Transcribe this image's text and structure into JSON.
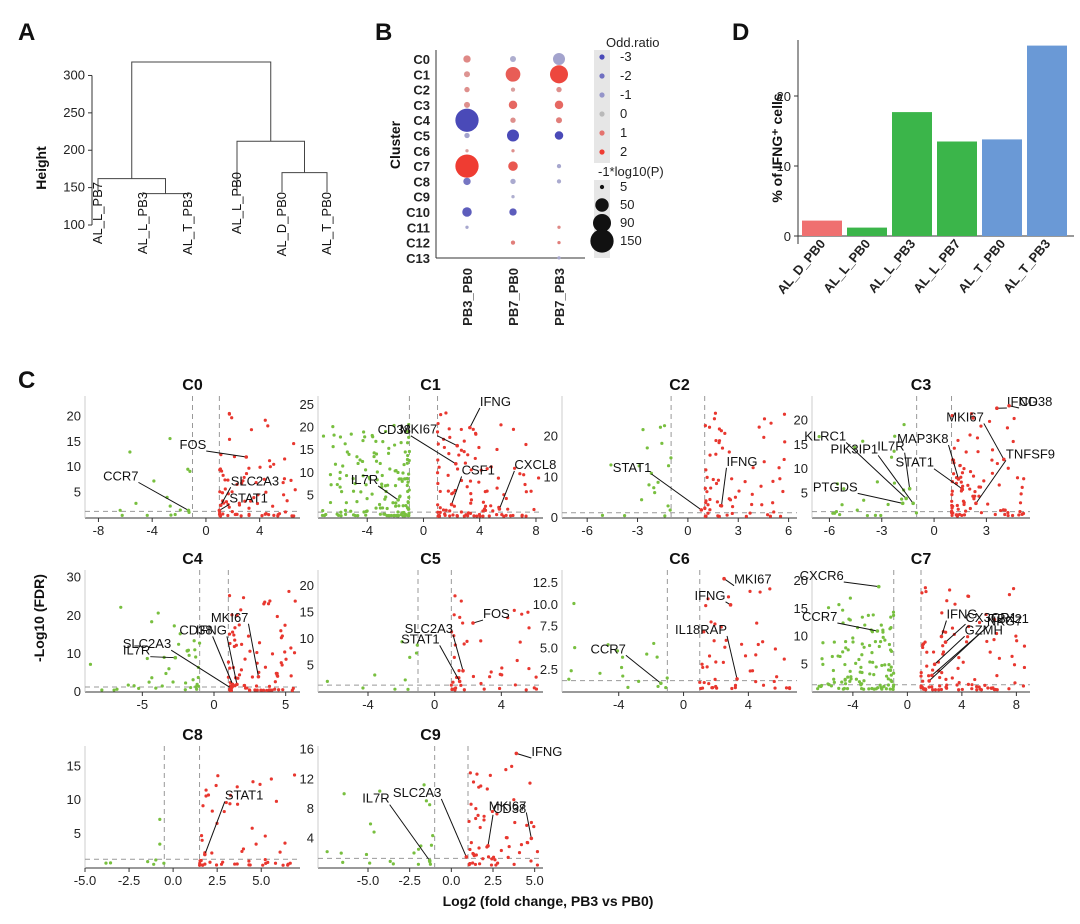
{
  "panel_labels": [
    "A",
    "B",
    "C",
    "D"
  ],
  "colors": {
    "up": "#e8372f",
    "down": "#78bf3f",
    "neg": "#4a4ab8",
    "pos": "#e46a5a",
    "grey": "#b9b9b9",
    "d_red": "#ef7070",
    "d_green": "#3bb54a",
    "d_blue": "#6a99d6"
  },
  "chart_data": [
    {
      "id": "A",
      "type": "dendrogram",
      "ylabel": "Height",
      "ylim": [
        100,
        310
      ],
      "yticks": [
        100,
        150,
        200,
        250,
        300
      ],
      "leaves": [
        "AL_L_PB7",
        "AL_L_PB3",
        "AL_T_PB3",
        "AL_L_PB0",
        "AL_D_PB0",
        "AL_T_PB0"
      ],
      "merges": [
        {
          "a": "AL_L_PB3",
          "b": "AL_T_PB3",
          "height": 142
        },
        {
          "a": "AL_L_PB7",
          "b": "AL_L_PB3+AL_T_PB3",
          "height": 162
        },
        {
          "a": "AL_D_PB0",
          "b": "AL_T_PB0",
          "height": 170
        },
        {
          "a": "AL_L_PB0",
          "b": "AL_D_PB0+AL_T_PB0",
          "height": 212
        },
        {
          "a": "left",
          "b": "right",
          "height": 318
        }
      ]
    },
    {
      "id": "B",
      "type": "dotplot",
      "ylabel": "Cluster",
      "clusters": [
        "C0",
        "C1",
        "C2",
        "C3",
        "C4",
        "C5",
        "C6",
        "C7",
        "C8",
        "C9",
        "C10",
        "C11",
        "C12",
        "C13"
      ],
      "columns": [
        "PB3_PB0",
        "PB7_PB0",
        "PB7_PB3"
      ],
      "legend_or": {
        "title": "Odd.ratio",
        "values": [
          -3,
          -2,
          -1,
          0,
          1,
          2
        ]
      },
      "legend_p": {
        "title": "-1*log10(P)",
        "values": [
          5,
          50,
          90,
          150
        ]
      },
      "dots": [
        [
          [
            0.6,
            15
          ],
          [
            -0.3,
            10
          ],
          [
            -0.6,
            40
          ]
        ],
        [
          [
            0.4,
            10
          ],
          [
            1.4,
            60
          ],
          [
            1.8,
            90
          ]
        ],
        [
          [
            0.5,
            8
          ],
          [
            0.2,
            5
          ],
          [
            0.5,
            8
          ]
        ],
        [
          [
            0.5,
            10
          ],
          [
            1.2,
            20
          ],
          [
            1.2,
            20
          ]
        ],
        [
          [
            -3,
            150
          ],
          [
            0.5,
            8
          ],
          [
            0.8,
            10
          ]
        ],
        [
          [
            -0.6,
            8
          ],
          [
            -3,
            40
          ],
          [
            -3,
            20
          ]
        ],
        [
          [
            0.2,
            3
          ],
          [
            0.5,
            3
          ],
          [
            0,
            0
          ]
        ],
        [
          [
            2,
            150
          ],
          [
            1.5,
            25
          ],
          [
            -0.5,
            5
          ]
        ],
        [
          [
            -1.8,
            15
          ],
          [
            -0.4,
            8
          ],
          [
            -0.4,
            5
          ]
        ],
        [
          [
            0,
            0
          ],
          [
            -0.3,
            3
          ],
          [
            0,
            0
          ]
        ],
        [
          [
            -2.5,
            25
          ],
          [
            -2.5,
            15
          ],
          [
            0,
            0
          ]
        ],
        [
          [
            -0.5,
            3
          ],
          [
            0,
            0
          ],
          [
            0.6,
            3
          ]
        ],
        [
          [
            0,
            0
          ],
          [
            0.8,
            5
          ],
          [
            0.8,
            3
          ]
        ],
        [
          [
            0,
            0
          ],
          [
            0,
            0
          ],
          [
            -0.5,
            3
          ]
        ]
      ]
    },
    {
      "id": "D",
      "type": "bar",
      "ylabel": "% of IFNG⁺ cells",
      "ylim": [
        0,
        28
      ],
      "yticks": [
        0,
        10,
        20
      ],
      "categories": [
        "AL_D_PB0",
        "AL_L_PB0",
        "AL_L_PB3",
        "AL_L_PB7",
        "AL_T_PB0",
        "AL_T_PB3"
      ],
      "values": [
        2.2,
        1.2,
        17.7,
        13.5,
        13.8,
        27.2
      ]
    },
    {
      "id": "C",
      "type": "scatter",
      "xlabel": "Log2 (fold change, PB3 vs PB0)",
      "ylabel": "-Log10 (FDR)",
      "panels": [
        {
          "title": "C0",
          "xlim": [
            -9,
            7
          ],
          "ylim": [
            0,
            24
          ],
          "xticks": [
            -8,
            -4,
            0,
            4
          ],
          "yticks": [
            5,
            10,
            15,
            20
          ],
          "vlines": [
            -1,
            1
          ],
          "seed": 11,
          "n_up": 80,
          "n_down": 15,
          "genes": [
            {
              "label": "FOS",
              "x": 3.0,
              "y": 12
            },
            {
              "label": "CCR7",
              "x": -1.3,
              "y": 1.5
            },
            {
              "label": "SLC2A3",
              "x": 1.1,
              "y": 2.5
            },
            {
              "label": "STAT1",
              "x": 1.0,
              "y": 1.5
            }
          ]
        },
        {
          "title": "C1",
          "xlim": [
            -7.5,
            8.5
          ],
          "ylim": [
            0,
            27
          ],
          "xticks": [
            -4,
            0,
            4,
            8
          ],
          "yticks": [
            5,
            10,
            15,
            20,
            25
          ],
          "vlines": [
            -1,
            1
          ],
          "seed": 23,
          "n_up": 110,
          "n_down": 160,
          "genes": [
            {
              "label": "MKI67",
              "x": 2.4,
              "y": 16
            },
            {
              "label": "IFNG",
              "x": 3.3,
              "y": 20
            },
            {
              "label": "CD38",
              "x": 2.3,
              "y": 12
            },
            {
              "label": "IL7R",
              "x": -1.8,
              "y": 4
            },
            {
              "label": "CSF1",
              "x": 2.0,
              "y": 3
            },
            {
              "label": "CXCL8",
              "x": 5.4,
              "y": 2
            }
          ]
        },
        {
          "title": "C2",
          "xlim": [
            -7.5,
            6.5
          ],
          "ylim": [
            0,
            30
          ],
          "xticks": [
            -6,
            -3,
            0,
            3,
            6
          ],
          "yticks": [
            0,
            10,
            20
          ],
          "vlines": [
            -1,
            1
          ],
          "seed": 37,
          "n_up": 70,
          "n_down": 20,
          "genes": [
            {
              "label": "STAT1",
              "x": 0.8,
              "y": 2
            },
            {
              "label": "IFNG",
              "x": 2.0,
              "y": 3
            }
          ]
        },
        {
          "title": "C3",
          "xlim": [
            -7,
            5.5
          ],
          "ylim": [
            0,
            25
          ],
          "xticks": [
            -6,
            -3,
            0,
            3
          ],
          "yticks": [
            5,
            10,
            15,
            20
          ],
          "vlines": [
            -1,
            1
          ],
          "seed": 41,
          "n_up": 90,
          "n_down": 25,
          "genes": [
            {
              "label": "IFNG",
              "x": 3.6,
              "y": 22.5
            },
            {
              "label": "CD38",
              "x": 4.3,
              "y": 23
            },
            {
              "label": "KLRC1",
              "x": -1.6,
              "y": 4
            },
            {
              "label": "PIK3IP1",
              "x": -1.2,
              "y": 3
            },
            {
              "label": "IL7R",
              "x": -1.4,
              "y": 6
            },
            {
              "label": "MAP3K8",
              "x": 1.4,
              "y": 8
            },
            {
              "label": "MKI67",
              "x": 4.0,
              "y": 12
            },
            {
              "label": "PTGDS",
              "x": -1.8,
              "y": 3
            },
            {
              "label": "STAT1",
              "x": 1.6,
              "y": 6
            },
            {
              "label": "TNFSF9",
              "x": 2.4,
              "y": 3
            }
          ]
        },
        {
          "title": "C4",
          "xlim": [
            -9,
            6
          ],
          "ylim": [
            0,
            32
          ],
          "xticks": [
            -5,
            0,
            5
          ],
          "yticks": [
            0,
            10,
            20,
            30
          ],
          "vlines": [
            -1,
            1
          ],
          "seed": 53,
          "n_up": 85,
          "n_down": 40,
          "genes": [
            {
              "label": "CD38",
              "x": 1.3,
              "y": 2
            },
            {
              "label": "MKI67",
              "x": 3.1,
              "y": 4
            },
            {
              "label": "IFNG",
              "x": 1.6,
              "y": 2
            },
            {
              "label": "IL7R",
              "x": -2.7,
              "y": 9
            },
            {
              "label": "SLC2A3",
              "x": 1.2,
              "y": 1
            }
          ]
        },
        {
          "title": "C5",
          "xlim": [
            -7,
            6.5
          ],
          "ylim": [
            0,
            23
          ],
          "xticks": [
            -4,
            0,
            4
          ],
          "yticks": [
            5,
            10,
            15,
            20
          ],
          "vlines": [
            -1,
            1
          ],
          "seed": 67,
          "n_up": 45,
          "n_down": 10,
          "genes": [
            {
              "label": "FOS",
              "x": 2.3,
              "y": 13
            },
            {
              "label": "SLC2A3",
              "x": 1.7,
              "y": 4
            },
            {
              "label": "STAT1",
              "x": 1.5,
              "y": 2
            }
          ]
        },
        {
          "title": "C6",
          "xlim": [
            -7.5,
            7
          ],
          "ylim": [
            0,
            14
          ],
          "xticks": [
            -4,
            0,
            4
          ],
          "yticks": [
            2.5,
            5.0,
            7.5,
            10.0,
            12.5
          ],
          "vlines": [
            -1,
            1
          ],
          "seed": 71,
          "n_up": 50,
          "n_down": 18,
          "genes": [
            {
              "label": "MKI67",
              "x": 2.5,
              "y": 13
            },
            {
              "label": "IFNG",
              "x": 2.9,
              "y": 10
            },
            {
              "label": "CCR7",
              "x": -1.4,
              "y": 1
            },
            {
              "label": "IL18RAP",
              "x": 3.3,
              "y": 1.5
            }
          ]
        },
        {
          "title": "C7",
          "xlim": [
            -7,
            9
          ],
          "ylim": [
            0,
            22
          ],
          "xticks": [
            -4,
            0,
            4,
            8
          ],
          "yticks": [
            5,
            10,
            15,
            20
          ],
          "vlines": [
            -1,
            1
          ],
          "seed": 83,
          "n_up": 100,
          "n_down": 120,
          "genes": [
            {
              "label": "IFNG",
              "x": 2.5,
              "y": 10
            },
            {
              "label": "CX3CR1",
              "x": 2.8,
              "y": 9
            },
            {
              "label": "GZMH",
              "x": 2.0,
              "y": 5
            },
            {
              "label": "CXCR6",
              "x": -2.1,
              "y": 19
            },
            {
              "label": "NKG7",
              "x": 1.8,
              "y": 3
            },
            {
              "label": "CCR7",
              "x": -2.2,
              "y": 11
            },
            {
              "label": "TBX21",
              "x": 1.6,
              "y": 2
            }
          ]
        },
        {
          "title": "C8",
          "xlim": [
            -5,
            7.2
          ],
          "ylim": [
            0,
            18
          ],
          "xticks": [
            -5.0,
            -2.5,
            0.0,
            2.5,
            5.0
          ],
          "yticks": [
            5,
            10,
            15
          ],
          "vlines": [
            -0.5,
            1.5
          ],
          "seed": 97,
          "n_up": 55,
          "n_down": 8,
          "genes": [
            {
              "label": "STAT1",
              "x": 1.8,
              "y": 2
            }
          ]
        },
        {
          "title": "C9",
          "xlim": [
            -8,
            5.5
          ],
          "ylim": [
            0,
            16.5
          ],
          "xticks": [
            -5.0,
            -2.5,
            0.0,
            2.5,
            5.0
          ],
          "yticks": [
            4,
            8,
            12,
            16
          ],
          "vlines": [
            -1,
            1
          ],
          "seed": 101,
          "n_up": 60,
          "n_down": 22,
          "genes": [
            {
              "label": "IFNG",
              "x": 3.9,
              "y": 15.5
            },
            {
              "label": "SLC2A3",
              "x": 0.9,
              "y": 1.5
            },
            {
              "label": "MKI67",
              "x": 4.8,
              "y": 4
            },
            {
              "label": "IL7R",
              "x": -1.3,
              "y": 1
            },
            {
              "label": "CD38",
              "x": 2.2,
              "y": 3
            }
          ]
        }
      ]
    }
  ]
}
